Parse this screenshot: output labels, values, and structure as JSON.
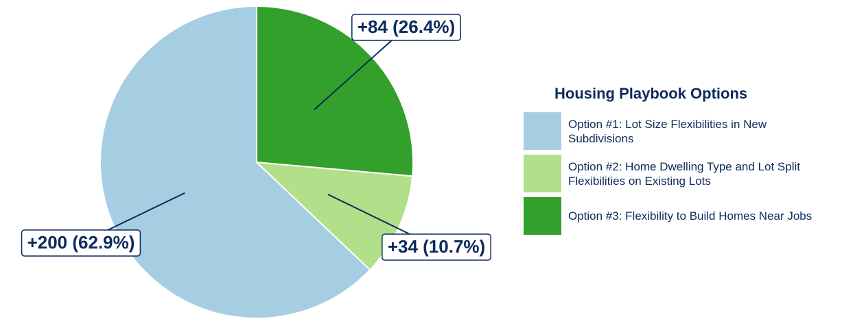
{
  "chart_data": {
    "type": "pie",
    "legend_title": "Housing Playbook Options",
    "categories": [
      "Option #1: Lot Size Flexibilities in New Subdivisions",
      "Option #2: Home Dwelling Type and Lot Split Flexibilities on Existing Lots",
      "Option #3: Flexibility to Build Homes Near Jobs"
    ],
    "values": [
      200,
      34,
      84
    ],
    "value_labels": [
      "+200 (62.9%)",
      "+34 (10.7%)",
      "+84 (26.4%)"
    ],
    "colors": [
      "#a6cee3",
      "#b2df8a",
      "#33a02c"
    ],
    "legend": "right"
  }
}
